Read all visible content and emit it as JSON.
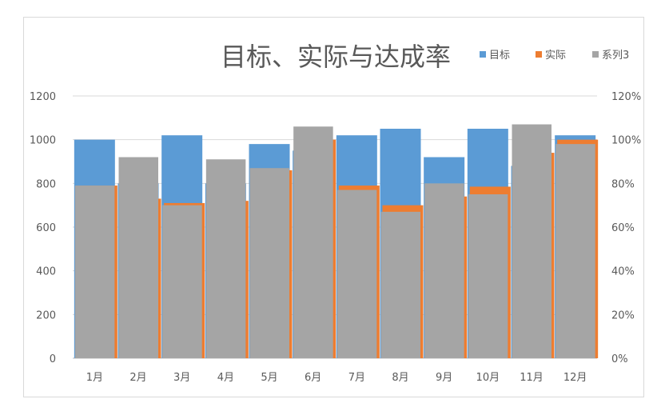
{
  "chart_data": {
    "type": "bar",
    "title": "目标、实际与达成率",
    "categories": [
      "1月",
      "2月",
      "3月",
      "4月",
      "5月",
      "6月",
      "7月",
      "8月",
      "9月",
      "10月",
      "11月",
      "12月"
    ],
    "series": [
      {
        "name": "目标",
        "axis": "left",
        "color": "#5b9bd5",
        "values": [
          1000,
          800,
          1020,
          800,
          980,
          950,
          1020,
          1050,
          920,
          1050,
          880,
          1020
        ]
      },
      {
        "name": "实际",
        "axis": "left",
        "color": "#ed7d31",
        "values": [
          790,
          730,
          710,
          720,
          860,
          1000,
          790,
          700,
          740,
          785,
          940,
          1000
        ]
      },
      {
        "name": "系列3",
        "axis": "right",
        "color": "#a5a5a5",
        "values": [
          0.79,
          0.92,
          0.7,
          0.91,
          0.87,
          1.06,
          0.77,
          0.67,
          0.8,
          0.75,
          1.07,
          0.98
        ]
      }
    ],
    "y_left": {
      "range": [
        0,
        1200
      ],
      "ticks": [
        "0",
        "200",
        "400",
        "600",
        "800",
        "1000",
        "1200"
      ]
    },
    "y_right": {
      "range": [
        0,
        1.2
      ],
      "ticks": [
        "0%",
        "20%",
        "40%",
        "60%",
        "80%",
        "100%",
        "120%"
      ]
    },
    "grid": true,
    "legend_position": "top-right"
  }
}
